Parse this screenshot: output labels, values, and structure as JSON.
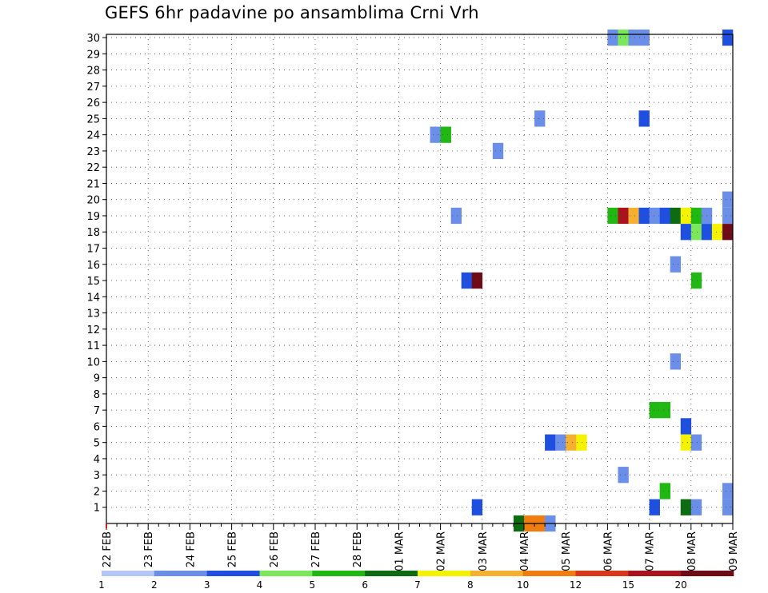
{
  "chart_data": {
    "type": "heatmap",
    "title": "GEFS 6hr padavine po ansamblima Crni Vrh",
    "x_tick_labels": [
      "22 FEB",
      "23 FEB",
      "24 FEB",
      "25 FEB",
      "26 FEB",
      "27 FEB",
      "28 FEB",
      "01 MAR",
      "02 MAR",
      "03 MAR",
      "04 MAR",
      "05 MAR",
      "06 MAR",
      "07 MAR",
      "08 MAR",
      "09 MAR"
    ],
    "x_unit": "6-hour step",
    "xlim": [
      0,
      60
    ],
    "ylim": [
      0,
      30
    ],
    "y_ticks": [
      1,
      2,
      3,
      4,
      5,
      6,
      7,
      8,
      9,
      10,
      11,
      12,
      13,
      14,
      15,
      16,
      17,
      18,
      19,
      20,
      21,
      22,
      23,
      24,
      25,
      26,
      27,
      28,
      29,
      30
    ],
    "grid": true,
    "colorbar": {
      "labels": [
        "1",
        "2",
        "3",
        "4",
        "5",
        "6",
        "7",
        "8",
        "10",
        "12",
        "15",
        "20"
      ],
      "colors": [
        "#b3c6f7",
        "#6b8ee8",
        "#1f4fe0",
        "#7ae85a",
        "#22b814",
        "#0d6b12",
        "#f5f200",
        "#f5b030",
        "#f07d10",
        "#d9381b",
        "#a8131e",
        "#6e0b16"
      ]
    },
    "cells": [
      {
        "member": 30,
        "step": 48,
        "bin": 1
      },
      {
        "member": 30,
        "step": 49,
        "bin": 3
      },
      {
        "member": 30,
        "step": 50,
        "bin": 1
      },
      {
        "member": 30,
        "step": 51,
        "bin": 1
      },
      {
        "member": 30,
        "step": 59,
        "bin": 2
      },
      {
        "member": 25,
        "step": 41,
        "bin": 1
      },
      {
        "member": 25,
        "step": 51,
        "bin": 2
      },
      {
        "member": 24,
        "step": 31,
        "bin": 1
      },
      {
        "member": 24,
        "step": 32,
        "bin": 4
      },
      {
        "member": 23,
        "step": 37,
        "bin": 1
      },
      {
        "member": 20,
        "step": 59,
        "bin": 1
      },
      {
        "member": 19,
        "step": 33,
        "bin": 1
      },
      {
        "member": 19,
        "step": 48,
        "bin": 4
      },
      {
        "member": 19,
        "step": 49,
        "bin": 10
      },
      {
        "member": 19,
        "step": 50,
        "bin": 7
      },
      {
        "member": 19,
        "step": 51,
        "bin": 2
      },
      {
        "member": 19,
        "step": 52,
        "bin": 1
      },
      {
        "member": 19,
        "step": 53,
        "bin": 2
      },
      {
        "member": 19,
        "step": 54,
        "bin": 5
      },
      {
        "member": 19,
        "step": 55,
        "bin": 6
      },
      {
        "member": 19,
        "step": 56,
        "bin": 4
      },
      {
        "member": 19,
        "step": 57,
        "bin": 1
      },
      {
        "member": 19,
        "step": 59,
        "bin": 1
      },
      {
        "member": 18,
        "step": 55,
        "bin": 2
      },
      {
        "member": 18,
        "step": 56,
        "bin": 3
      },
      {
        "member": 18,
        "step": 57,
        "bin": 2
      },
      {
        "member": 18,
        "step": 58,
        "bin": 6
      },
      {
        "member": 18,
        "step": 59,
        "bin": 11
      },
      {
        "member": 16,
        "step": 54,
        "bin": 1
      },
      {
        "member": 15,
        "step": 34,
        "bin": 2
      },
      {
        "member": 15,
        "step": 35,
        "bin": 11
      },
      {
        "member": 15,
        "step": 56,
        "bin": 4
      },
      {
        "member": 10,
        "step": 54,
        "bin": 1
      },
      {
        "member": 7,
        "step": 52,
        "bin": 4
      },
      {
        "member": 7,
        "step": 53,
        "bin": 4
      },
      {
        "member": 6,
        "step": 55,
        "bin": 2
      },
      {
        "member": 5,
        "step": 42,
        "bin": 2
      },
      {
        "member": 5,
        "step": 43,
        "bin": 1
      },
      {
        "member": 5,
        "step": 44,
        "bin": 7
      },
      {
        "member": 5,
        "step": 45,
        "bin": 6
      },
      {
        "member": 5,
        "step": 55,
        "bin": 6
      },
      {
        "member": 5,
        "step": 56,
        "bin": 1
      },
      {
        "member": 3,
        "step": 49,
        "bin": 1
      },
      {
        "member": 2,
        "step": 53,
        "bin": 4
      },
      {
        "member": 2,
        "step": 59,
        "bin": 1
      },
      {
        "member": 1,
        "step": 35,
        "bin": 2
      },
      {
        "member": 1,
        "step": 52,
        "bin": 2
      },
      {
        "member": 1,
        "step": 55,
        "bin": 5
      },
      {
        "member": 1,
        "step": 56,
        "bin": 1
      },
      {
        "member": 1,
        "step": 59,
        "bin": 1
      },
      {
        "member": 0,
        "step": 39,
        "bin": 5
      },
      {
        "member": 0,
        "step": 40,
        "bin": 8
      },
      {
        "member": 0,
        "step": 41,
        "bin": 8
      },
      {
        "member": 0,
        "step": 42,
        "bin": 1
      }
    ]
  }
}
